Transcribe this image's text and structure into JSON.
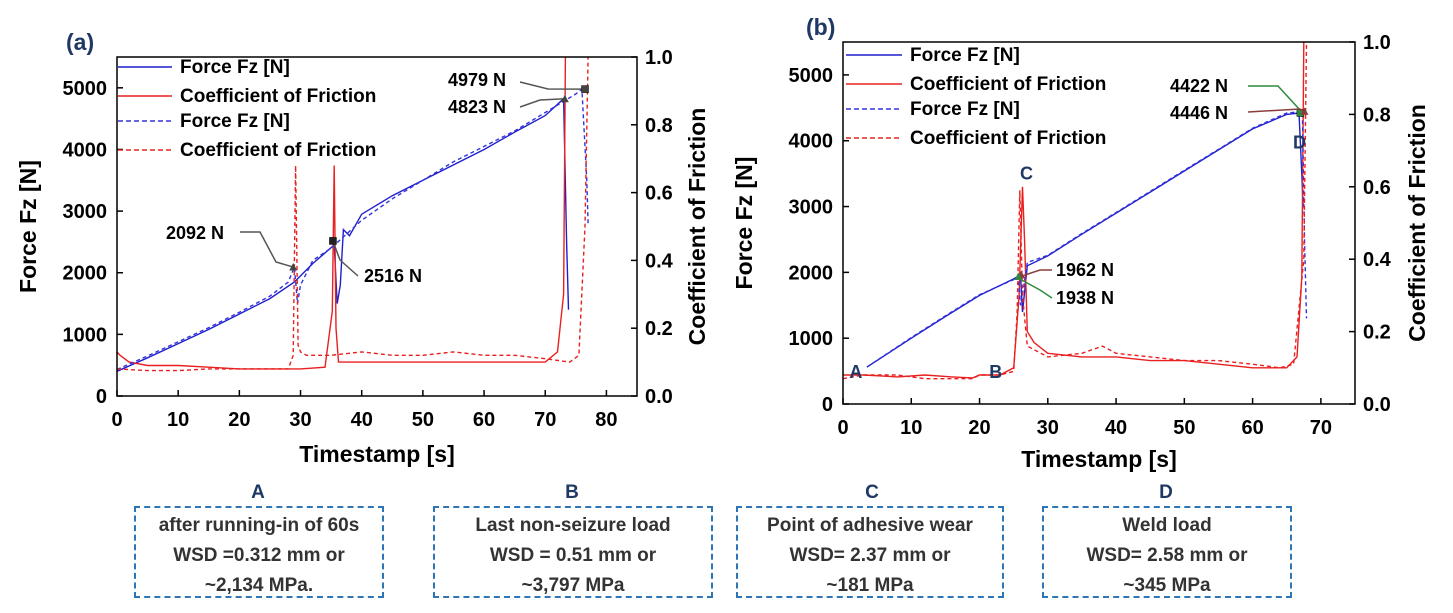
{
  "chart_data": [
    {
      "panel": "(a)",
      "type": "line",
      "xlabel": "Timestamp [s]",
      "ylabel_left": "Force Fz [N]",
      "ylabel_right": "Coefficient of Friction",
      "xlim": [
        0,
        85
      ],
      "ylim_left": [
        0,
        5500
      ],
      "ylim_right": [
        0,
        1.0
      ],
      "x_ticks": [
        0,
        10,
        20,
        30,
        40,
        50,
        60,
        70,
        80
      ],
      "y_ticks_left": [
        0,
        1000,
        2000,
        3000,
        4000,
        5000
      ],
      "y_ticks_right": [
        0.0,
        0.2,
        0.4,
        0.6,
        0.8,
        1.0
      ],
      "legend": [
        "Force Fz [N]",
        "Coefficient of Friction",
        "Force Fz [N]",
        "Coefficient of Friction"
      ],
      "series": [
        {
          "name": "Force Fz [N]",
          "axis": "left",
          "style": "solid",
          "color": "#1f1fcc",
          "x": [
            0,
            5,
            10,
            15,
            20,
            25,
            29,
            32,
            35.5,
            36,
            36.5,
            37,
            38,
            40,
            45,
            50,
            55,
            60,
            65,
            70,
            73,
            73.5,
            73.8
          ],
          "y": [
            400,
            620,
            850,
            1080,
            1330,
            1580,
            1850,
            2150,
            2450,
            1500,
            1800,
            2700,
            2600,
            2950,
            3250,
            3500,
            3750,
            4000,
            4280,
            4550,
            4823,
            2500,
            1400
          ]
        },
        {
          "name": "Coefficient of Friction",
          "axis": "right",
          "style": "solid",
          "color": "#e8201f",
          "x": [
            0,
            0.5,
            2,
            5,
            10,
            15,
            20,
            25,
            30,
            34,
            35.2,
            35.5,
            35.8,
            36.2,
            37,
            40,
            45,
            50,
            55,
            60,
            65,
            70,
            72,
            73,
            73.3
          ],
          "y": [
            0.13,
            0.12,
            0.1,
            0.09,
            0.09,
            0.085,
            0.08,
            0.08,
            0.08,
            0.085,
            0.25,
            0.68,
            0.2,
            0.1,
            0.1,
            0.1,
            0.1,
            0.1,
            0.1,
            0.1,
            0.1,
            0.1,
            0.13,
            0.3,
            1.0
          ]
        },
        {
          "name": "Force Fz [N]",
          "axis": "left",
          "style": "dashed",
          "color": "#3333dd",
          "x": [
            0,
            5,
            10,
            15,
            20,
            25,
            28,
            29,
            29.5,
            30,
            32,
            35,
            40,
            45,
            50,
            55,
            60,
            65,
            70,
            75,
            76,
            76.8,
            77
          ],
          "y": [
            430,
            650,
            880,
            1110,
            1360,
            1620,
            1850,
            2092,
            1500,
            1800,
            2200,
            2400,
            2850,
            3200,
            3500,
            3800,
            4050,
            4300,
            4600,
            4900,
            4979,
            3500,
            2800
          ]
        },
        {
          "name": "Coefficient of Friction",
          "axis": "right",
          "style": "dashed",
          "color": "#e8201f",
          "x": [
            0,
            5,
            10,
            15,
            20,
            25,
            28,
            28.8,
            29.2,
            29.6,
            30,
            31,
            35,
            40,
            45,
            50,
            55,
            60,
            65,
            70,
            74,
            75.5,
            76.5,
            77
          ],
          "y": [
            0.08,
            0.075,
            0.075,
            0.08,
            0.08,
            0.08,
            0.08,
            0.12,
            0.68,
            0.15,
            0.13,
            0.12,
            0.12,
            0.13,
            0.12,
            0.12,
            0.13,
            0.12,
            0.12,
            0.11,
            0.1,
            0.12,
            0.5,
            1.0
          ]
        }
      ],
      "annotations": [
        {
          "text": "4979 N",
          "x": 76.5,
          "y": 4979,
          "marker": "square",
          "color": "#444444"
        },
        {
          "text": "4823 N",
          "x": 73.2,
          "y": 4823,
          "marker": "triangle",
          "color": "#444444"
        },
        {
          "text": "2092 N",
          "x": 28.8,
          "y": 2092,
          "marker": "triangle",
          "color": "#444444"
        },
        {
          "text": "2516 N",
          "x": 35.3,
          "y": 2516,
          "marker": "square",
          "color": "#222222"
        }
      ]
    },
    {
      "panel": "(b)",
      "type": "line",
      "xlabel": "Timestamp [s]",
      "ylabel_left": "Force Fz [N]",
      "ylabel_right": "Coefficient of Friction",
      "xlim": [
        0,
        75
      ],
      "ylim_left": [
        0,
        5500
      ],
      "ylim_right": [
        0,
        1.0
      ],
      "x_ticks": [
        0,
        10,
        20,
        30,
        40,
        50,
        60,
        70
      ],
      "y_ticks_left": [
        0,
        1000,
        2000,
        3000,
        4000,
        5000
      ],
      "y_ticks_right": [
        0.0,
        0.2,
        0.4,
        0.6,
        0.8,
        1.0
      ],
      "legend": [
        "Force Fz [N]",
        "Coefficient of Friction",
        "Force Fz [N]",
        "Coefficient of Friction"
      ],
      "series": [
        {
          "name": "Force Fz [N]",
          "axis": "left",
          "style": "solid",
          "color": "#1f1fcc",
          "x": [
            3.5,
            10,
            15,
            20,
            25,
            26,
            26.3,
            26.6,
            27,
            30,
            35,
            40,
            45,
            50,
            55,
            60,
            65,
            66.8,
            67.2,
            67.4
          ],
          "y": [
            560,
            1000,
            1330,
            1650,
            1900,
            1962,
            1400,
            1700,
            2100,
            2250,
            2580,
            2900,
            3220,
            3540,
            3860,
            4180,
            4400,
            4422,
            3500,
            3000
          ]
        },
        {
          "name": "Coefficient of Friction",
          "axis": "right",
          "style": "solid",
          "color": "#e8201f",
          "x": [
            0,
            3,
            8,
            12,
            16,
            19,
            20,
            23,
            25,
            25.8,
            26.3,
            26.6,
            27,
            28,
            30,
            35,
            40,
            45,
            50,
            55,
            60,
            63,
            65,
            66.5,
            67.2,
            67.5
          ],
          "y": [
            0.08,
            0.08,
            0.075,
            0.08,
            0.075,
            0.072,
            0.08,
            0.08,
            0.1,
            0.3,
            0.6,
            0.45,
            0.2,
            0.17,
            0.14,
            0.13,
            0.13,
            0.12,
            0.12,
            0.11,
            0.1,
            0.1,
            0.1,
            0.13,
            0.35,
            1.0
          ]
        },
        {
          "name": "Force Fz [N]",
          "axis": "left",
          "style": "dashed",
          "color": "#3333dd",
          "x": [
            3.5,
            10,
            15,
            20,
            25,
            25.7,
            26,
            26.5,
            27,
            30,
            35,
            40,
            45,
            50,
            55,
            60,
            65,
            67.3,
            67.6,
            67.9
          ],
          "y": [
            560,
            1010,
            1340,
            1660,
            1890,
            1938,
            1500,
            1800,
            2150,
            2260,
            2590,
            2910,
            3230,
            3550,
            3870,
            4190,
            4420,
            4446,
            2500,
            1300
          ]
        },
        {
          "name": "Coefficient of Friction",
          "axis": "right",
          "style": "dashed",
          "color": "#e8201f",
          "x": [
            0,
            3,
            8,
            12,
            16,
            19,
            20,
            23,
            25,
            25.5,
            25.9,
            26.3,
            27,
            28,
            30,
            35,
            38,
            40,
            45,
            50,
            55,
            60,
            64,
            66,
            67.5,
            67.9
          ],
          "y": [
            0.07,
            0.08,
            0.08,
            0.07,
            0.07,
            0.07,
            0.08,
            0.08,
            0.09,
            0.25,
            0.59,
            0.3,
            0.16,
            0.15,
            0.13,
            0.14,
            0.16,
            0.14,
            0.13,
            0.12,
            0.12,
            0.11,
            0.1,
            0.11,
            0.4,
            1.0
          ]
        }
      ],
      "annotations": [
        {
          "text": "4422 N",
          "x": 67.0,
          "y": 4422,
          "marker": "square",
          "color": "#2e8b3d"
        },
        {
          "text": "4446 N",
          "x": 67.6,
          "y": 4446,
          "marker": "triangle",
          "color": "#8b3d3d"
        },
        {
          "text": "1962 N",
          "x": 26.1,
          "y": 1962,
          "marker": "triangle",
          "color": "#8b3d3d"
        },
        {
          "text": "1938 N",
          "x": 25.7,
          "y": 1938,
          "marker": "triangle",
          "color": "#2e8b3d"
        }
      ],
      "point_labels": [
        {
          "text": "A",
          "x": 1.0,
          "y": 520
        },
        {
          "text": "B",
          "x": 21.5,
          "y": 520
        },
        {
          "text": "C",
          "x": 26.0,
          "y": 3530
        },
        {
          "text": "D",
          "x": 66.0,
          "y": 4000
        }
      ]
    }
  ],
  "boxes": [
    {
      "letter": "A",
      "lines": [
        "after running-in of 60s",
        "WSD =0.312 mm or",
        "~2,134 MPa."
      ]
    },
    {
      "letter": "B",
      "lines": [
        "Last non-seizure load",
        "WSD = 0.51 mm or",
        "~3,797 MPa"
      ]
    },
    {
      "letter": "C",
      "lines": [
        "Point of adhesive wear",
        "WSD= 2.37 mm or",
        "~181 MPa"
      ]
    },
    {
      "letter": "D",
      "lines": [
        "Weld load",
        "WSD= 2.58 mm or",
        "~345 MPa"
      ]
    }
  ]
}
